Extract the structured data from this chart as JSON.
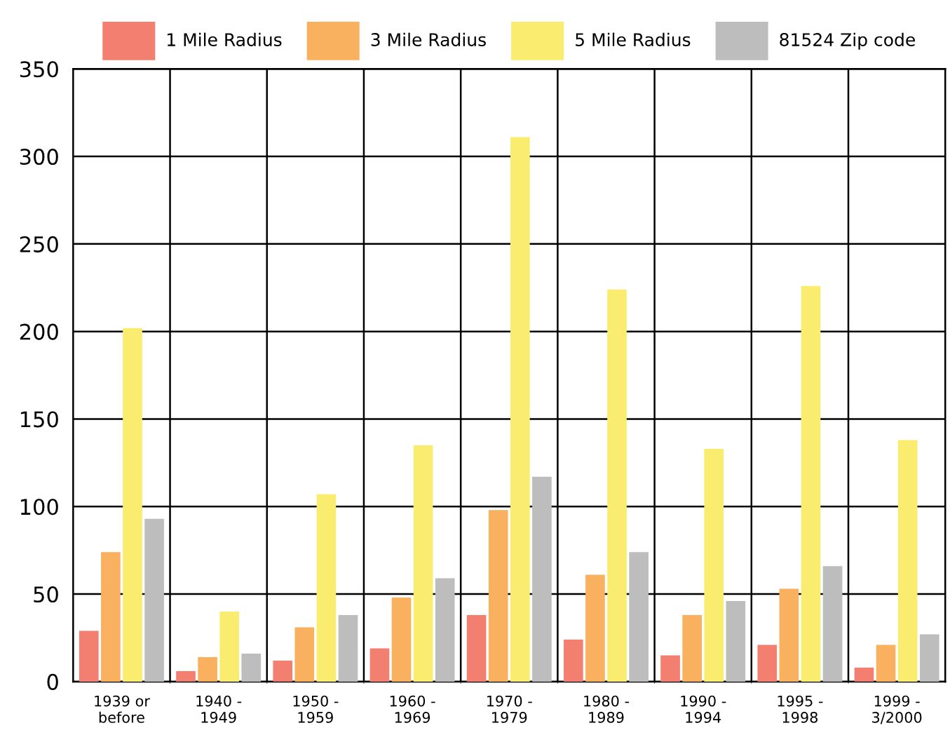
{
  "chart_data": {
    "type": "bar",
    "categories": [
      "1939 or\nbefore",
      "1940 -\n1949",
      "1950 -\n1959",
      "1960 -\n1969",
      "1970 -\n1979",
      "1980 -\n1989",
      "1990 -\n1994",
      "1995 -\n1998",
      "1999 -\n3/2000"
    ],
    "series": [
      {
        "name": "1 Mile Radius",
        "color": "#f27f6f",
        "values": [
          29,
          6,
          12,
          19,
          38,
          24,
          15,
          21,
          8
        ]
      },
      {
        "name": "3 Mile Radius",
        "color": "#f9b05f",
        "values": [
          74,
          14,
          31,
          48,
          98,
          61,
          38,
          53,
          21
        ]
      },
      {
        "name": "5 Mile Radius",
        "color": "#f9ec6e",
        "values": [
          202,
          40,
          107,
          135,
          311,
          224,
          133,
          226,
          138
        ]
      },
      {
        "name": "81524 Zip code",
        "color": "#bdbdbd",
        "values": [
          93,
          16,
          38,
          59,
          117,
          74,
          46,
          66,
          27
        ]
      }
    ],
    "ylim": [
      0,
      350
    ],
    "yticks": [
      0,
      50,
      100,
      150,
      200,
      250,
      300,
      350
    ],
    "grid": true,
    "legend": "top"
  }
}
